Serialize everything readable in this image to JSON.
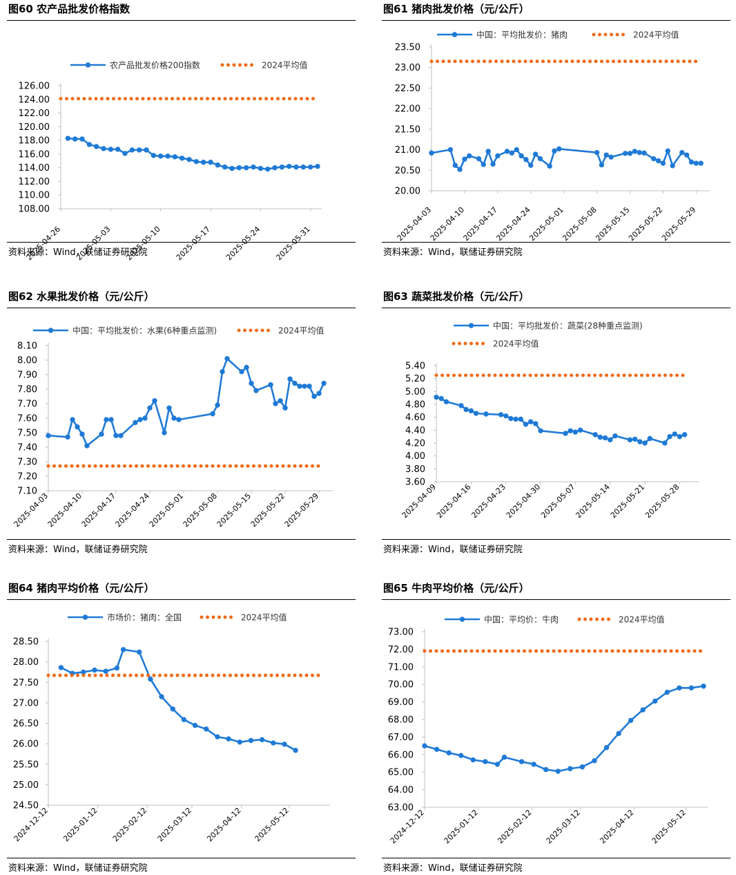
{
  "colors": {
    "series": "#1f7ad6",
    "average": "#f06a14",
    "axis": "#bfbfbf",
    "rule": "#000000"
  },
  "charts": [
    {
      "title": "图60 农产品批发价格指数",
      "source": "资料来源：Wind，联储证券研究院",
      "chart_data": {
        "type": "line",
        "title": "图60 农产品批发价格指数",
        "legend": [
          "农产品批发价格200指数",
          "2024平均值"
        ],
        "legend_position": "top",
        "ylim": [
          108,
          126
        ],
        "ytick_step": 2,
        "y_decimals": 2,
        "xlim": [
          0,
          36
        ],
        "xticks": [
          {
            "x": 0,
            "label": "2025-04-26"
          },
          {
            "x": 7,
            "label": "2025-05-03"
          },
          {
            "x": 14,
            "label": "2025-05-10"
          },
          {
            "x": 21,
            "label": "2025-05-17"
          },
          {
            "x": 28,
            "label": "2025-05-24"
          },
          {
            "x": 35,
            "label": "2025-05-31"
          }
        ],
        "series": [
          {
            "name": "农产品批发价格200指数",
            "style": "solid-marker",
            "x": [
              1,
              2,
              3,
              4,
              5,
              6,
              7,
              8,
              9,
              10,
              11,
              12,
              13,
              14,
              15,
              16,
              17,
              18,
              19,
              20,
              21,
              22,
              23,
              24,
              25,
              26,
              27,
              28,
              29,
              30,
              31,
              32,
              33,
              34,
              35,
              36
            ],
            "values": [
              118.3,
              118.2,
              118.2,
              117.4,
              117.1,
              116.8,
              116.7,
              116.7,
              116.1,
              116.6,
              116.6,
              116.6,
              115.8,
              115.7,
              115.7,
              115.6,
              115.4,
              115.2,
              114.9,
              114.8,
              114.8,
              114.4,
              114.1,
              113.9,
              114.0,
              114.0,
              114.1,
              113.9,
              113.8,
              114.0,
              114.1,
              114.2,
              114.1,
              114.1,
              114.1,
              114.2
            ]
          },
          {
            "name": "2024平均值",
            "style": "dotted",
            "constant": 124.1,
            "x_range": [
              0,
              36
            ]
          }
        ]
      }
    },
    {
      "title": "图61 猪肉批发价格（元/公斤）",
      "source": "资料来源：Wind，联储证券研究院",
      "chart_data": {
        "type": "line",
        "title": "图61 猪肉批发价格（元/公斤）",
        "legend": [
          "中国：平均批发价：猪肉",
          "2024平均值"
        ],
        "legend_position": "top",
        "ylim": [
          20,
          23.5
        ],
        "ytick_step": 0.5,
        "y_decimals": 2,
        "xlim": [
          0,
          58
        ],
        "xticks": [
          {
            "x": 0,
            "label": "2025-04-03"
          },
          {
            "x": 7,
            "label": "2025-04-10"
          },
          {
            "x": 14,
            "label": "2025-04-17"
          },
          {
            "x": 21,
            "label": "2025-04-24"
          },
          {
            "x": 28,
            "label": "2025-05-01"
          },
          {
            "x": 35,
            "label": "2025-05-08"
          },
          {
            "x": 42,
            "label": "2025-05-15"
          },
          {
            "x": 49,
            "label": "2025-05-22"
          },
          {
            "x": 56,
            "label": "2025-05-29"
          }
        ],
        "series": [
          {
            "name": "中国：平均批发价：猪肉",
            "style": "solid-marker",
            "x": [
              0,
              4,
              5,
              6,
              7,
              8,
              10,
              11,
              12,
              13,
              14,
              16,
              17,
              18,
              19,
              20,
              21,
              22,
              23,
              25,
              26,
              27,
              35,
              36,
              37,
              38,
              41,
              42,
              43,
              44,
              45,
              47,
              48,
              49,
              50,
              51,
              53,
              54,
              55,
              56,
              57
            ],
            "values": [
              20.92,
              21.0,
              20.62,
              20.52,
              20.77,
              20.85,
              20.78,
              20.64,
              20.96,
              20.65,
              20.85,
              20.96,
              20.92,
              21.0,
              20.85,
              20.76,
              20.62,
              20.89,
              20.78,
              20.6,
              20.97,
              21.02,
              20.93,
              20.63,
              20.87,
              20.82,
              20.91,
              20.91,
              20.96,
              20.93,
              20.92,
              20.78,
              20.73,
              20.67,
              20.97,
              20.61,
              20.93,
              20.87,
              20.7,
              20.67,
              20.67
            ]
          },
          {
            "name": "2024平均值",
            "style": "dotted",
            "constant": 23.15,
            "x_range": [
              0,
              57
            ]
          }
        ]
      }
    },
    {
      "title": "图62 水果批发价格（元/公斤）",
      "source": "资料来源：Wind，联储证券研究院",
      "chart_data": {
        "type": "line",
        "title": "图62 水果批发价格（元/公斤）",
        "legend": [
          "中国：平均批发价：水果(6种重点监测)",
          "2024平均值"
        ],
        "legend_position": "top",
        "ylim": [
          7.1,
          8.1
        ],
        "ytick_step": 0.1,
        "y_decimals": 2,
        "xlim": [
          0,
          58
        ],
        "xticks": [
          {
            "x": 0,
            "label": "2025-04-03"
          },
          {
            "x": 7,
            "label": "2025-04-10"
          },
          {
            "x": 14,
            "label": "2025-04-17"
          },
          {
            "x": 21,
            "label": "2025-04-24"
          },
          {
            "x": 28,
            "label": "2025-05-01"
          },
          {
            "x": 35,
            "label": "2025-05-08"
          },
          {
            "x": 42,
            "label": "2025-05-15"
          },
          {
            "x": 49,
            "label": "2025-05-22"
          },
          {
            "x": 56,
            "label": "2025-05-29"
          }
        ],
        "series": [
          {
            "name": "中国：平均批发价：水果(6种重点监测)",
            "style": "solid-marker",
            "x": [
              0,
              4,
              5,
              6,
              7,
              8,
              11,
              12,
              13,
              14,
              15,
              18,
              19,
              20,
              21,
              22,
              24,
              25,
              26,
              27,
              34,
              35,
              36,
              37,
              40,
              41,
              42,
              43,
              46,
              47,
              48,
              49,
              50,
              51,
              52,
              53,
              54,
              55,
              56,
              57
            ],
            "values": [
              7.48,
              7.47,
              7.59,
              7.54,
              7.49,
              7.41,
              7.49,
              7.59,
              7.59,
              7.48,
              7.48,
              7.57,
              7.59,
              7.6,
              7.67,
              7.72,
              7.5,
              7.67,
              7.6,
              7.59,
              7.63,
              7.69,
              7.92,
              8.01,
              7.92,
              7.95,
              7.84,
              7.79,
              7.83,
              7.7,
              7.72,
              7.67,
              7.87,
              7.84,
              7.82,
              7.82,
              7.82,
              7.75,
              7.77,
              7.84
            ]
          },
          {
            "name": "2024平均值",
            "style": "dotted",
            "constant": 7.27,
            "x_range": [
              0,
              57
            ]
          }
        ]
      }
    },
    {
      "title": "图63 蔬菜批发价格（元/公斤）",
      "source": "资料来源：Wind，联储证券研究院",
      "chart_data": {
        "type": "line",
        "title": "图63 蔬菜批发价格（元/公斤）",
        "legend": [
          "中国：平均批发价：蔬菜(28种重点监测)",
          "2024平均值"
        ],
        "legend_position": "top-stacked",
        "ylim": [
          3.6,
          5.4
        ],
        "ytick_step": 0.2,
        "y_decimals": 2,
        "xlim": [
          0,
          52
        ],
        "xticks": [
          {
            "x": 0,
            "label": "2025-04-09"
          },
          {
            "x": 7,
            "label": "2025-04-16"
          },
          {
            "x": 14,
            "label": "2025-04-23"
          },
          {
            "x": 21,
            "label": "2025-04-30"
          },
          {
            "x": 28,
            "label": "2025-05-07"
          },
          {
            "x": 35,
            "label": "2025-05-14"
          },
          {
            "x": 42,
            "label": "2025-05-21"
          },
          {
            "x": 49,
            "label": "2025-05-28"
          }
        ],
        "series": [
          {
            "name": "中国：平均批发价：蔬菜(28种重点监测)",
            "style": "solid-marker",
            "x": [
              0,
              1,
              2,
              5,
              6,
              7,
              8,
              10,
              13,
              14,
              15,
              16,
              17,
              18,
              19,
              20,
              21,
              26,
              27,
              28,
              29,
              32,
              33,
              34,
              35,
              36,
              39,
              40,
              41,
              42,
              43,
              46,
              47,
              48,
              49,
              50
            ],
            "values": [
              4.91,
              4.89,
              4.84,
              4.78,
              4.72,
              4.7,
              4.66,
              4.65,
              4.64,
              4.62,
              4.58,
              4.57,
              4.57,
              4.49,
              4.53,
              4.5,
              4.39,
              4.35,
              4.39,
              4.37,
              4.4,
              4.33,
              4.29,
              4.28,
              4.25,
              4.31,
              4.25,
              4.26,
              4.22,
              4.2,
              4.27,
              4.2,
              4.3,
              4.34,
              4.3,
              4.33
            ]
          },
          {
            "name": "2024平均值",
            "style": "dotted",
            "constant": 5.25,
            "x_range": [
              0,
              50
            ]
          }
        ]
      }
    },
    {
      "title": "图64 猪肉平均价格（元/公斤）",
      "source": "资料来源：Wind，联储证券研究院",
      "chart_data": {
        "type": "line",
        "title": "图64 猪肉平均价格（元/公斤）",
        "legend": [
          "市场价：猪肉：全国",
          "2024平均值"
        ],
        "legend_position": "top",
        "ylim": [
          24.5,
          28.5
        ],
        "ytick_step": 0.5,
        "y_decimals": 2,
        "xlim": [
          0,
          174
        ],
        "xticks": [
          {
            "x": 0,
            "label": "2024-12-12"
          },
          {
            "x": 31,
            "label": "2025-01-12"
          },
          {
            "x": 62,
            "label": "2025-02-12"
          },
          {
            "x": 90,
            "label": "2025-03-12"
          },
          {
            "x": 121,
            "label": "2025-04-12"
          },
          {
            "x": 151,
            "label": "2025-05-12"
          }
        ],
        "series": [
          {
            "name": "市场价：猪肉：全国",
            "style": "solid-marker",
            "x": [
              8,
              15,
              22,
              29,
              36,
              43,
              47,
              57,
              64,
              71,
              78,
              85,
              92,
              99,
              106,
              113,
              120,
              127,
              134,
              141,
              148,
              155
            ],
            "values": [
              27.86,
              27.72,
              27.75,
              27.8,
              27.77,
              27.85,
              28.3,
              28.24,
              27.58,
              27.15,
              26.85,
              26.59,
              26.45,
              26.36,
              26.17,
              26.12,
              26.04,
              26.08,
              26.1,
              26.02,
              25.99,
              25.84
            ]
          },
          {
            "name": "2024平均值",
            "style": "dotted",
            "constant": 27.67,
            "x_range": [
              0,
              170
            ]
          }
        ]
      }
    },
    {
      "title": "图65 牛肉平均价格（元/公斤）",
      "source": "资料来源：Wind，联储证券研究院",
      "chart_data": {
        "type": "line",
        "title": "图65 牛肉平均价格（元/公斤）",
        "legend": [
          "中国：平均价：牛肉",
          "2024平均值"
        ],
        "legend_position": "top",
        "ylim": [
          63,
          73
        ],
        "ytick_step": 1,
        "y_decimals": 2,
        "xlim": [
          0,
          161
        ],
        "xticks": [
          {
            "x": 0,
            "label": "2024-12-12"
          },
          {
            "x": 31,
            "label": "2025-01-12"
          },
          {
            "x": 62,
            "label": "2025-02-12"
          },
          {
            "x": 90,
            "label": "2025-03-12"
          },
          {
            "x": 121,
            "label": "2025-04-12"
          },
          {
            "x": 151,
            "label": "2025-05-12"
          }
        ],
        "series": [
          {
            "name": "中国：平均价：牛肉",
            "style": "solid-marker",
            "x": [
              0,
              7,
              14,
              21,
              28,
              35,
              42,
              46,
              56,
              63,
              70,
              77,
              84,
              91,
              98,
              105,
              112,
              119,
              126,
              133,
              140,
              147,
              154,
              161
            ],
            "values": [
              66.5,
              66.3,
              66.1,
              65.95,
              65.7,
              65.6,
              65.45,
              65.85,
              65.6,
              65.45,
              65.15,
              65.05,
              65.2,
              65.3,
              65.65,
              66.4,
              67.2,
              67.95,
              68.55,
              69.05,
              69.55,
              69.8,
              69.8,
              69.9
            ]
          },
          {
            "name": "2024平均值",
            "style": "dotted",
            "constant": 71.9,
            "x_range": [
              0,
              161
            ]
          }
        ]
      }
    }
  ]
}
